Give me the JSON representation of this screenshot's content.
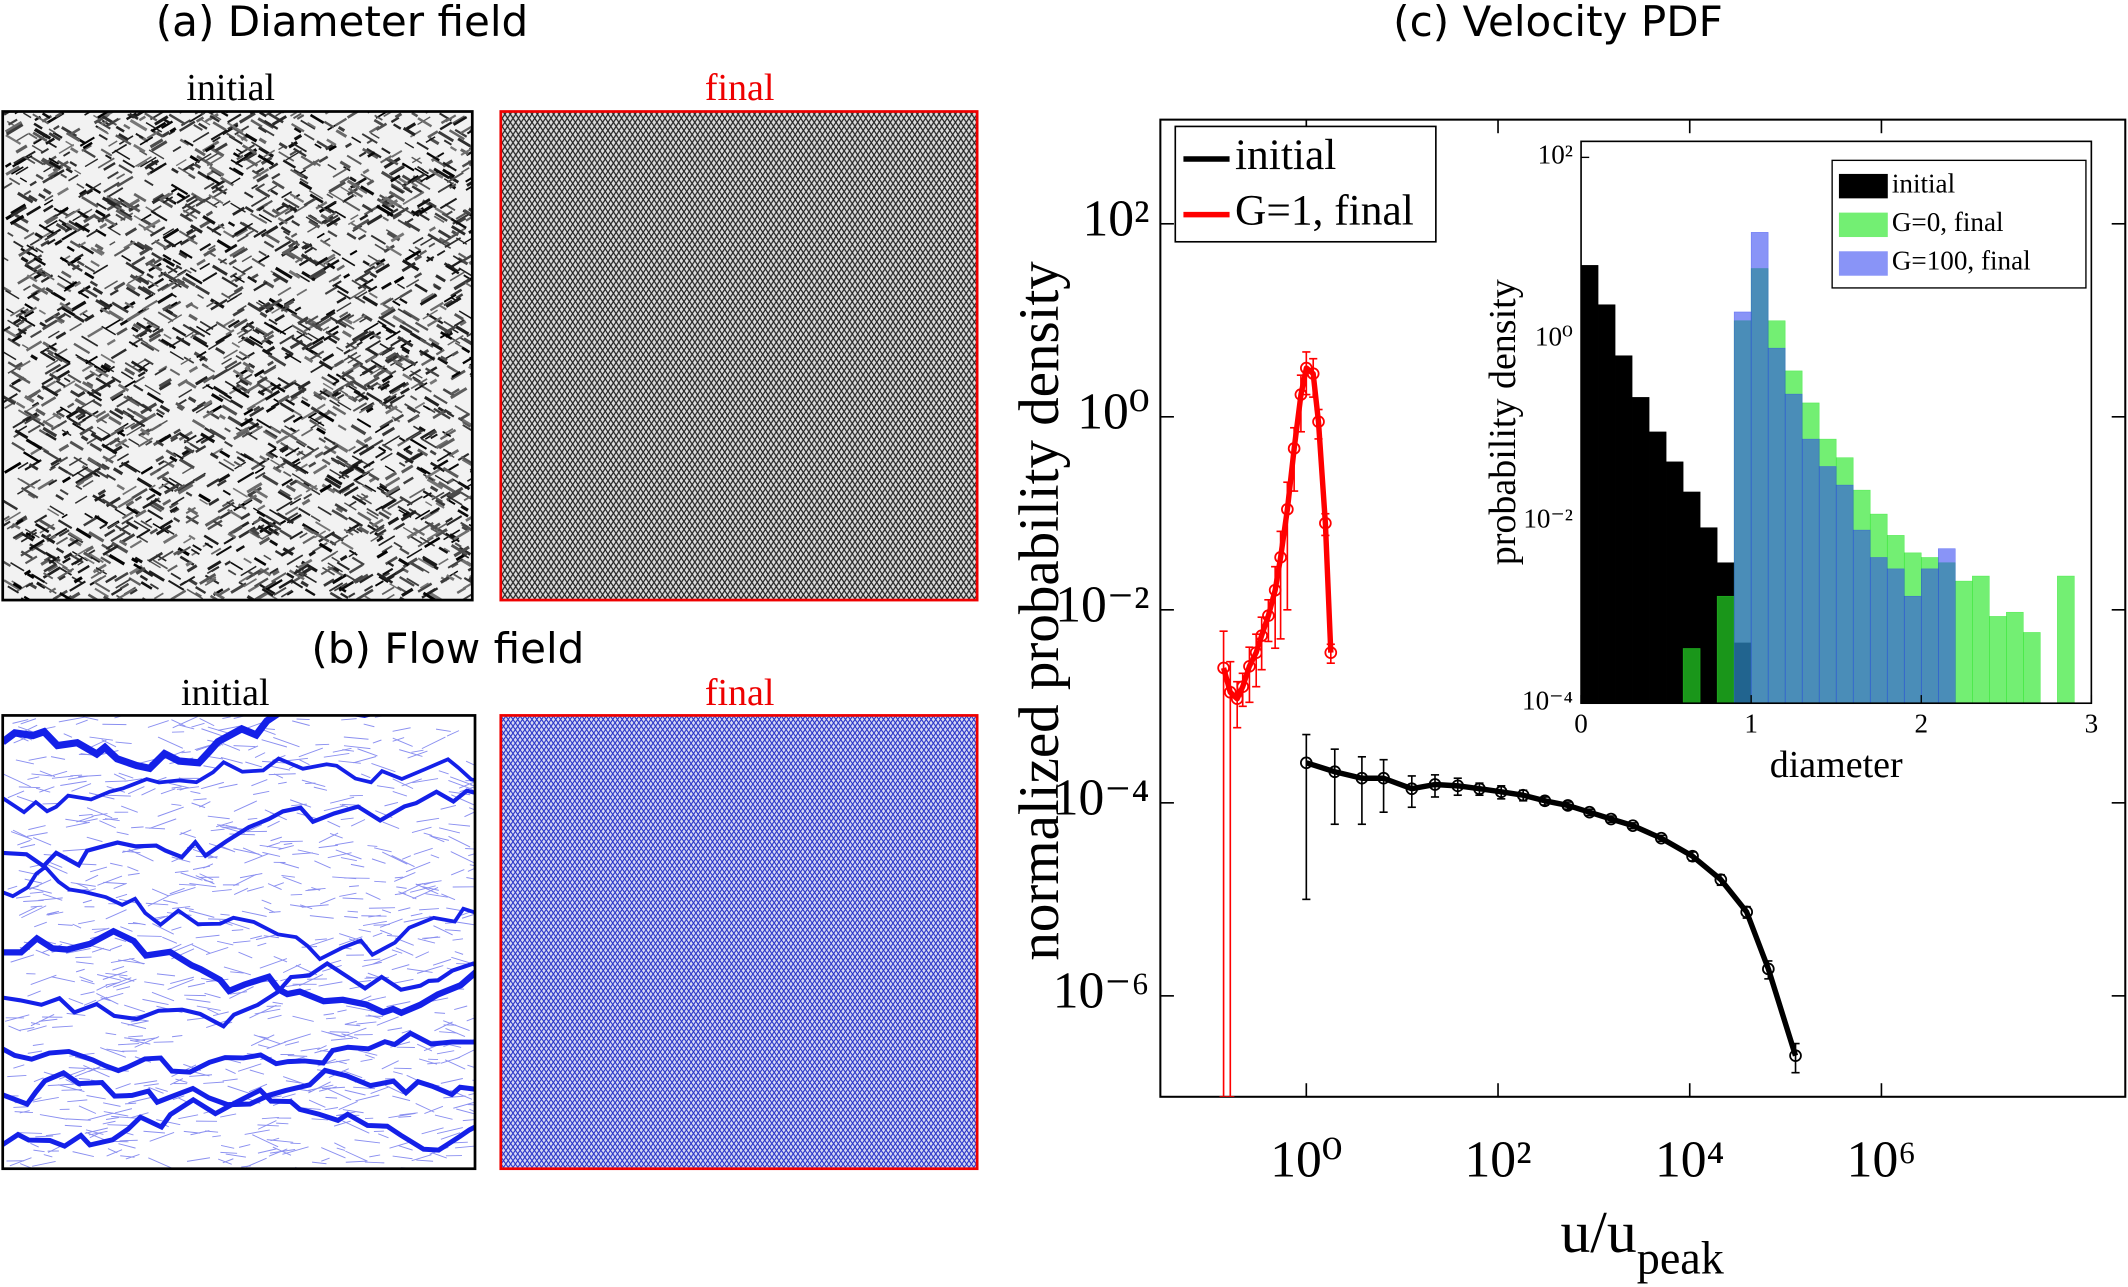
{
  "figure": {
    "panel_a": {
      "title": "(a) Diameter field",
      "left_label": "initial",
      "right_label": "final"
    },
    "panel_b": {
      "title": "(b) Flow field",
      "left_label": "initial",
      "right_label": "final"
    }
  },
  "chart_data": [
    {
      "type": "line",
      "title": "(c) Velocity PDF",
      "xlabel": "u/u",
      "xlabel_subscript": "peak",
      "ylabel": "normalized probability density",
      "xscale": "log",
      "yscale": "log",
      "xlim": [
        0.03,
        350000000
      ],
      "ylim": [
        9e-08,
        1200
      ],
      "xticks": [
        {
          "value": 1,
          "label": "10⁰"
        },
        {
          "value": 100,
          "label": "10²"
        },
        {
          "value": 10000,
          "label": "10⁴"
        },
        {
          "value": 1000000,
          "label": "10⁶"
        }
      ],
      "yticks": [
        {
          "value": 1e-06,
          "label": "10⁻⁶"
        },
        {
          "value": 0.0001,
          "label": "10⁻⁴"
        },
        {
          "value": 0.01,
          "label": "10⁻²"
        },
        {
          "value": 1,
          "label": "10⁰"
        },
        {
          "value": 100,
          "label": "10²"
        }
      ],
      "legend": "upper left",
      "series": [
        {
          "name": "initial",
          "color": "#000000",
          "x": [
            1,
            1.98,
            3.8,
            6.4,
            12.6,
            22,
            38,
            64,
            108,
            183,
            308,
            535,
            900,
            1510,
            2550,
            5050,
            10700,
            21100,
            39300,
            66100,
            127000
          ],
          "values": [
            0.00026,
            0.00021,
            0.00018,
            0.00018,
            0.00014,
            0.000155,
            0.00015,
            0.00014,
            0.00013,
            0.00012,
            0.000105,
            9.4e-05,
            8e-05,
            6.8e-05,
            5.8e-05,
            4.3e-05,
            2.8e-05,
            1.6e-05,
            7.4e-06,
            1.9e-06,
            2.4e-07
          ],
          "errors": [
            0.00025,
            0.00015,
            0.00012,
            0.0001,
            5e-05,
            4e-05,
            3e-05,
            2e-05,
            2e-05,
            1.5e-05,
            1e-05,
            8e-06,
            6e-06,
            5e-06,
            4e-06,
            3e-06,
            3e-06,
            2e-06,
            1e-06,
            4e-07,
            8e-08
          ]
        },
        {
          "name": "G=1, final",
          "color": "#ff0000",
          "x": [
            0.137,
            0.161,
            0.19,
            0.217,
            0.255,
            0.3,
            0.342,
            0.402,
            0.473,
            0.539,
            0.634,
            0.746,
            0.878,
            1,
            1.18,
            1.34,
            1.58,
            1.8
          ],
          "values": [
            0.0025,
            0.0014,
            0.0012,
            0.0016,
            0.0026,
            0.0036,
            0.0054,
            0.0087,
            0.016,
            0.035,
            0.11,
            0.47,
            1.7,
            3.2,
            2.8,
            0.89,
            0.079,
            0.0036
          ],
          "errors": [
            0.0035,
            0.0015,
            0.0006,
            0.0006,
            0.0015,
            0.002,
            0.003,
            0.004,
            0.012,
            0.03,
            0.1,
            0.3,
            1,
            1.5,
            1.2,
            0.3,
            0.02,
            0.0008
          ]
        }
      ]
    },
    {
      "type": "histogram",
      "xlabel": "diameter",
      "ylabel": "probability density",
      "yscale": "log",
      "xlim": [
        0,
        3
      ],
      "ylim": [
        0.0001,
        150
      ],
      "xticks": [
        0,
        1,
        2,
        3
      ],
      "yticks": [
        {
          "value": 0.0001,
          "label": "10⁻⁴"
        },
        {
          "value": 0.01,
          "label": "10⁻²"
        },
        {
          "value": 1,
          "label": "10⁰"
        },
        {
          "value": 100,
          "label": "10²"
        }
      ],
      "legend": "upper right",
      "bins": [
        0,
        0.1,
        0.2,
        0.3,
        0.4,
        0.5,
        0.6,
        0.7,
        0.8,
        0.9,
        1,
        1.1,
        1.2,
        1.3,
        1.4,
        1.5,
        1.6,
        1.7,
        1.8,
        1.9,
        2,
        2.1,
        2.2,
        2.3,
        2.4,
        2.5,
        2.6,
        2.7,
        2.8,
        2.9,
        3
      ],
      "series": [
        {
          "name": "initial",
          "color": "#000000",
          "values": [
            6.5,
            2.4,
            0.66,
            0.23,
            0.096,
            0.045,
            0.021,
            0.0085,
            0.0035,
            0.00046,
            null,
            null,
            null,
            null,
            null,
            null,
            null,
            null,
            null,
            null,
            null,
            null,
            null,
            null,
            null,
            null,
            null,
            null,
            null,
            null
          ]
        },
        {
          "name": "G=0, final",
          "color": "rgba(40,230,40,0.65)",
          "values": [
            null,
            null,
            null,
            null,
            null,
            null,
            0.0004,
            null,
            0.0015,
            1.6,
            6,
            1.6,
            0.45,
            0.2,
            0.08,
            0.05,
            0.022,
            0.012,
            0.007,
            0.0045,
            0.004,
            0.0035,
            0.0022,
            0.0025,
            0.0009,
            0.001,
            0.0006,
            null,
            0.0025,
            null
          ]
        },
        {
          "name": "G=100, final",
          "color": "rgba(40,60,240,0.55)",
          "values": [
            null,
            null,
            null,
            null,
            null,
            null,
            null,
            null,
            null,
            2,
            15,
            0.8,
            0.25,
            0.08,
            0.04,
            0.025,
            0.008,
            0.004,
            0.003,
            0.0015,
            0.003,
            0.005,
            null,
            null,
            null,
            null,
            null,
            null,
            null,
            null
          ]
        }
      ]
    }
  ]
}
